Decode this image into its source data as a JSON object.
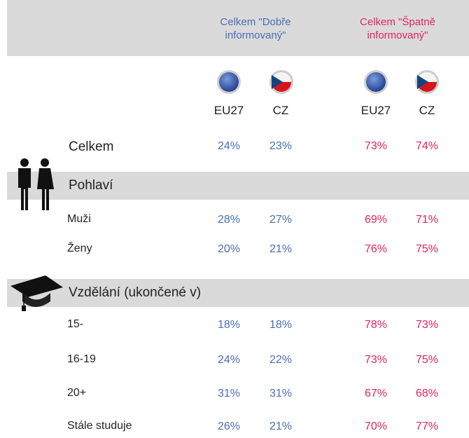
{
  "header": {
    "good": [
      "Celkem \"Dobře",
      "informovaný\""
    ],
    "bad": [
      "Celkem \"Špatně",
      "informovaný\""
    ]
  },
  "columns": [
    "EU27",
    "CZ",
    "EU27",
    "CZ"
  ],
  "total": {
    "label": "Celkem",
    "values": [
      "24%",
      "23%",
      "73%",
      "74%"
    ]
  },
  "sections": [
    {
      "title": "Pohlaví",
      "rows": [
        {
          "label": "Muži",
          "values": [
            "28%",
            "27%",
            "69%",
            "71%"
          ]
        },
        {
          "label": "Ženy",
          "values": [
            "20%",
            "21%",
            "76%",
            "75%"
          ]
        }
      ]
    },
    {
      "title": "Vzdělání (ukončené v)",
      "rows": [
        {
          "label": "15-",
          "values": [
            "18%",
            "18%",
            "78%",
            "73%"
          ]
        },
        {
          "label": "16-19",
          "values": [
            "24%",
            "22%",
            "73%",
            "75%"
          ]
        },
        {
          "label": "20+",
          "values": [
            "31%",
            "31%",
            "67%",
            "68%"
          ]
        },
        {
          "label": "Stále studuje",
          "values": [
            "26%",
            "21%",
            "70%",
            "77%"
          ]
        }
      ]
    }
  ]
}
